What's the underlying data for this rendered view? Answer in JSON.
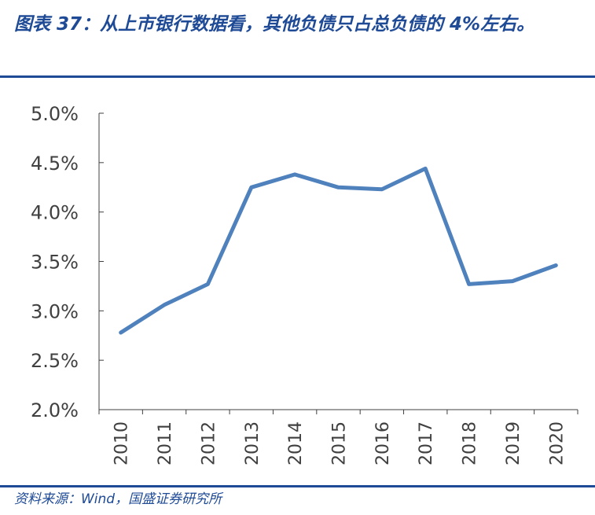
{
  "header": {
    "title": "图表 37：从上市银行数据看，其他负债只占总负债的 4%左右。"
  },
  "footer": {
    "source": "资料来源：Wind，国盛证券研究所"
  },
  "chart_data": {
    "type": "line",
    "categories": [
      "2010",
      "2011",
      "2012",
      "2013",
      "2014",
      "2015",
      "2016",
      "2017",
      "2018",
      "2019",
      "2020"
    ],
    "series": [
      {
        "values": [
          2.78,
          3.06,
          3.27,
          4.25,
          4.38,
          4.25,
          4.23,
          4.44,
          3.27,
          3.3,
          3.46
        ]
      }
    ],
    "yticks": [
      "2.0%",
      "2.5%",
      "3.0%",
      "3.5%",
      "4.0%",
      "4.5%",
      "5.0%"
    ],
    "ylim": [
      2.0,
      5.0
    ],
    "grid": false,
    "line_color": "#4f81bd"
  }
}
